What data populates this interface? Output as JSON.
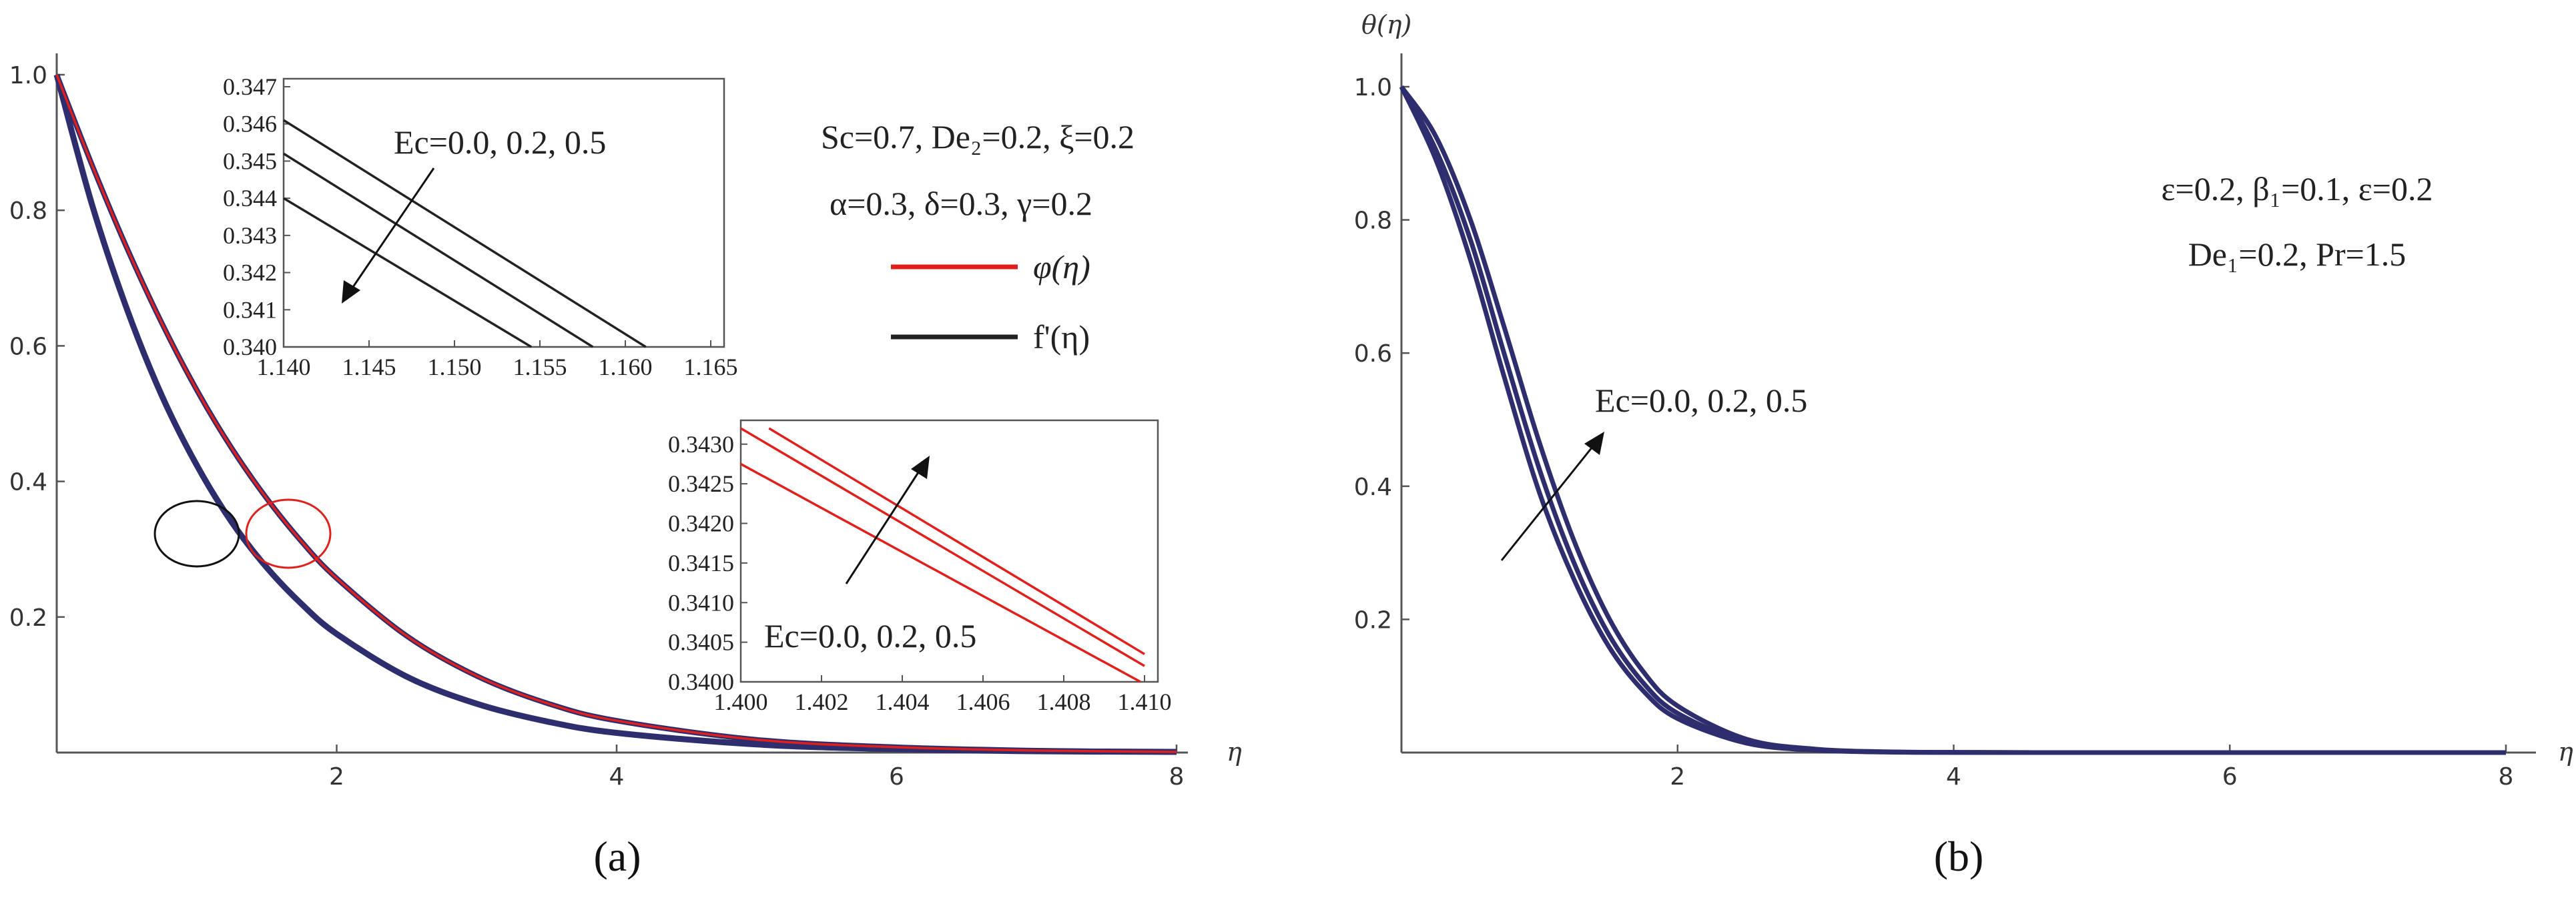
{
  "colors": {
    "phi": "#e0201c",
    "fprime": "#222222",
    "theta": "#2e2e6e",
    "curve_main": "#2e2e6e"
  },
  "chart_data": [
    {
      "type": "line",
      "panel_label": "(a)",
      "xlabel": "η",
      "ylabel": "",
      "xlim": [
        0,
        8
      ],
      "ylim": [
        0,
        1.0
      ],
      "x_ticks": [
        "2",
        "4",
        "6",
        "8"
      ],
      "y_ticks": [
        "0.2",
        "0.4",
        "0.6",
        "0.8",
        "1.0"
      ],
      "params_line1": "Sc=0.7, De₂=0.2, ξ=0.2",
      "params_line2": "α=0.3, δ=0.3, γ=0.2",
      "legend": [
        {
          "label": "φ(η)",
          "color": "#e0201c"
        },
        {
          "label": "f'(η)",
          "color": "#222222"
        }
      ],
      "legend_position": "right",
      "series": [
        {
          "name": "φ(η)",
          "x": [
            0,
            0.25,
            0.5,
            0.75,
            1,
            1.25,
            1.5,
            1.75,
            2,
            2.5,
            3,
            3.5,
            4,
            5,
            6,
            7,
            8
          ],
          "y": [
            1.0,
            0.868,
            0.745,
            0.634,
            0.535,
            0.449,
            0.375,
            0.311,
            0.257,
            0.172,
            0.113,
            0.073,
            0.047,
            0.019,
            0.008,
            0.003,
            0.001
          ]
        },
        {
          "name": "f'(η)",
          "x": [
            0,
            0.25,
            0.5,
            0.75,
            1,
            1.25,
            1.5,
            1.75,
            2,
            2.5,
            3,
            3.5,
            4,
            5,
            6,
            7,
            8
          ],
          "y": [
            1.0,
            0.81,
            0.655,
            0.527,
            0.424,
            0.34,
            0.273,
            0.219,
            0.175,
            0.112,
            0.072,
            0.046,
            0.029,
            0.012,
            0.005,
            0.002,
            0.001
          ]
        }
      ],
      "inset_top": {
        "annotation": "Ec=0.0, 0.2, 0.5",
        "x_ticks": [
          "1.140",
          "1.145",
          "1.150",
          "1.155",
          "1.160",
          "1.165"
        ],
        "y_ticks": [
          "0.340",
          "0.341",
          "0.342",
          "0.343",
          "0.344",
          "0.345",
          "0.346",
          "0.347"
        ],
        "xlim": [
          1.14,
          1.165
        ],
        "ylim": [
          0.34,
          0.347
        ],
        "lines": [
          {
            "x": [
              1.14,
              1.1612
            ],
            "y": [
              0.3461,
              0.34
            ]
          },
          {
            "x": [
              1.14,
              1.1581
            ],
            "y": [
              0.3452,
              0.34
            ]
          },
          {
            "x": [
              1.14,
              1.1545
            ],
            "y": [
              0.344,
              0.34
            ]
          }
        ]
      },
      "inset_bottom": {
        "annotation": "Ec=0.0, 0.2, 0.5",
        "x_ticks": [
          "1.400",
          "1.402",
          "1.404",
          "1.406",
          "1.408",
          "1.410"
        ],
        "y_ticks": [
          "0.3400",
          "0.3405",
          "0.3410",
          "0.3415",
          "0.3420",
          "0.3425",
          "0.3430"
        ],
        "xlim": [
          1.4,
          1.41
        ],
        "ylim": [
          0.34,
          0.3432
        ],
        "lines": [
          {
            "x": [
              1.4007,
              1.41
            ],
            "y": [
              0.3432,
              0.34035
            ]
          },
          {
            "x": [
              1.4,
              1.41
            ],
            "y": [
              0.3432,
              0.3402
            ]
          },
          {
            "x": [
              1.4,
              1.4099
            ],
            "y": [
              0.34275,
              0.34
            ]
          }
        ]
      }
    },
    {
      "type": "line",
      "panel_label": "(b)",
      "xlabel": "η",
      "ylabel": "θ(η)",
      "xlim": [
        0,
        8
      ],
      "ylim": [
        0,
        1.0
      ],
      "x_ticks": [
        "2",
        "4",
        "6",
        "8"
      ],
      "y_ticks": [
        "0.2",
        "0.4",
        "0.6",
        "0.8",
        "1.0"
      ],
      "params_line1": "ε=0.2, β₁=0.1, ε=0.2",
      "params_line2": "De₁=0.2, Pr=1.5",
      "annotation": "Ec=0.0, 0.2, 0.5",
      "series": [
        {
          "name": "Ec=0.0",
          "x": [
            0,
            0.25,
            0.5,
            0.75,
            1,
            1.25,
            1.5,
            1.75,
            2,
            2.5,
            3,
            3.5,
            4,
            5,
            6,
            8
          ],
          "y": [
            1.0,
            0.89,
            0.74,
            0.56,
            0.39,
            0.26,
            0.16,
            0.093,
            0.051,
            0.014,
            0.0035,
            0.0008,
            0.0002,
            0,
            0,
            0
          ]
        },
        {
          "name": "Ec=0.2",
          "x": [
            0,
            0.25,
            0.5,
            0.75,
            1,
            1.25,
            1.5,
            1.75,
            2,
            2.5,
            3,
            3.5,
            4,
            5,
            6,
            8
          ],
          "y": [
            1.0,
            0.905,
            0.77,
            0.595,
            0.425,
            0.285,
            0.178,
            0.105,
            0.059,
            0.016,
            0.0042,
            0.001,
            0.0002,
            0,
            0,
            0
          ]
        },
        {
          "name": "Ec=0.5",
          "x": [
            0,
            0.25,
            0.5,
            0.75,
            1,
            1.25,
            1.5,
            1.75,
            2,
            2.5,
            3,
            3.5,
            4,
            5,
            6,
            8
          ],
          "y": [
            1.0,
            0.925,
            0.8,
            0.635,
            0.465,
            0.318,
            0.203,
            0.122,
            0.07,
            0.02,
            0.0052,
            0.0012,
            0.0003,
            0,
            0,
            0
          ]
        }
      ]
    }
  ]
}
